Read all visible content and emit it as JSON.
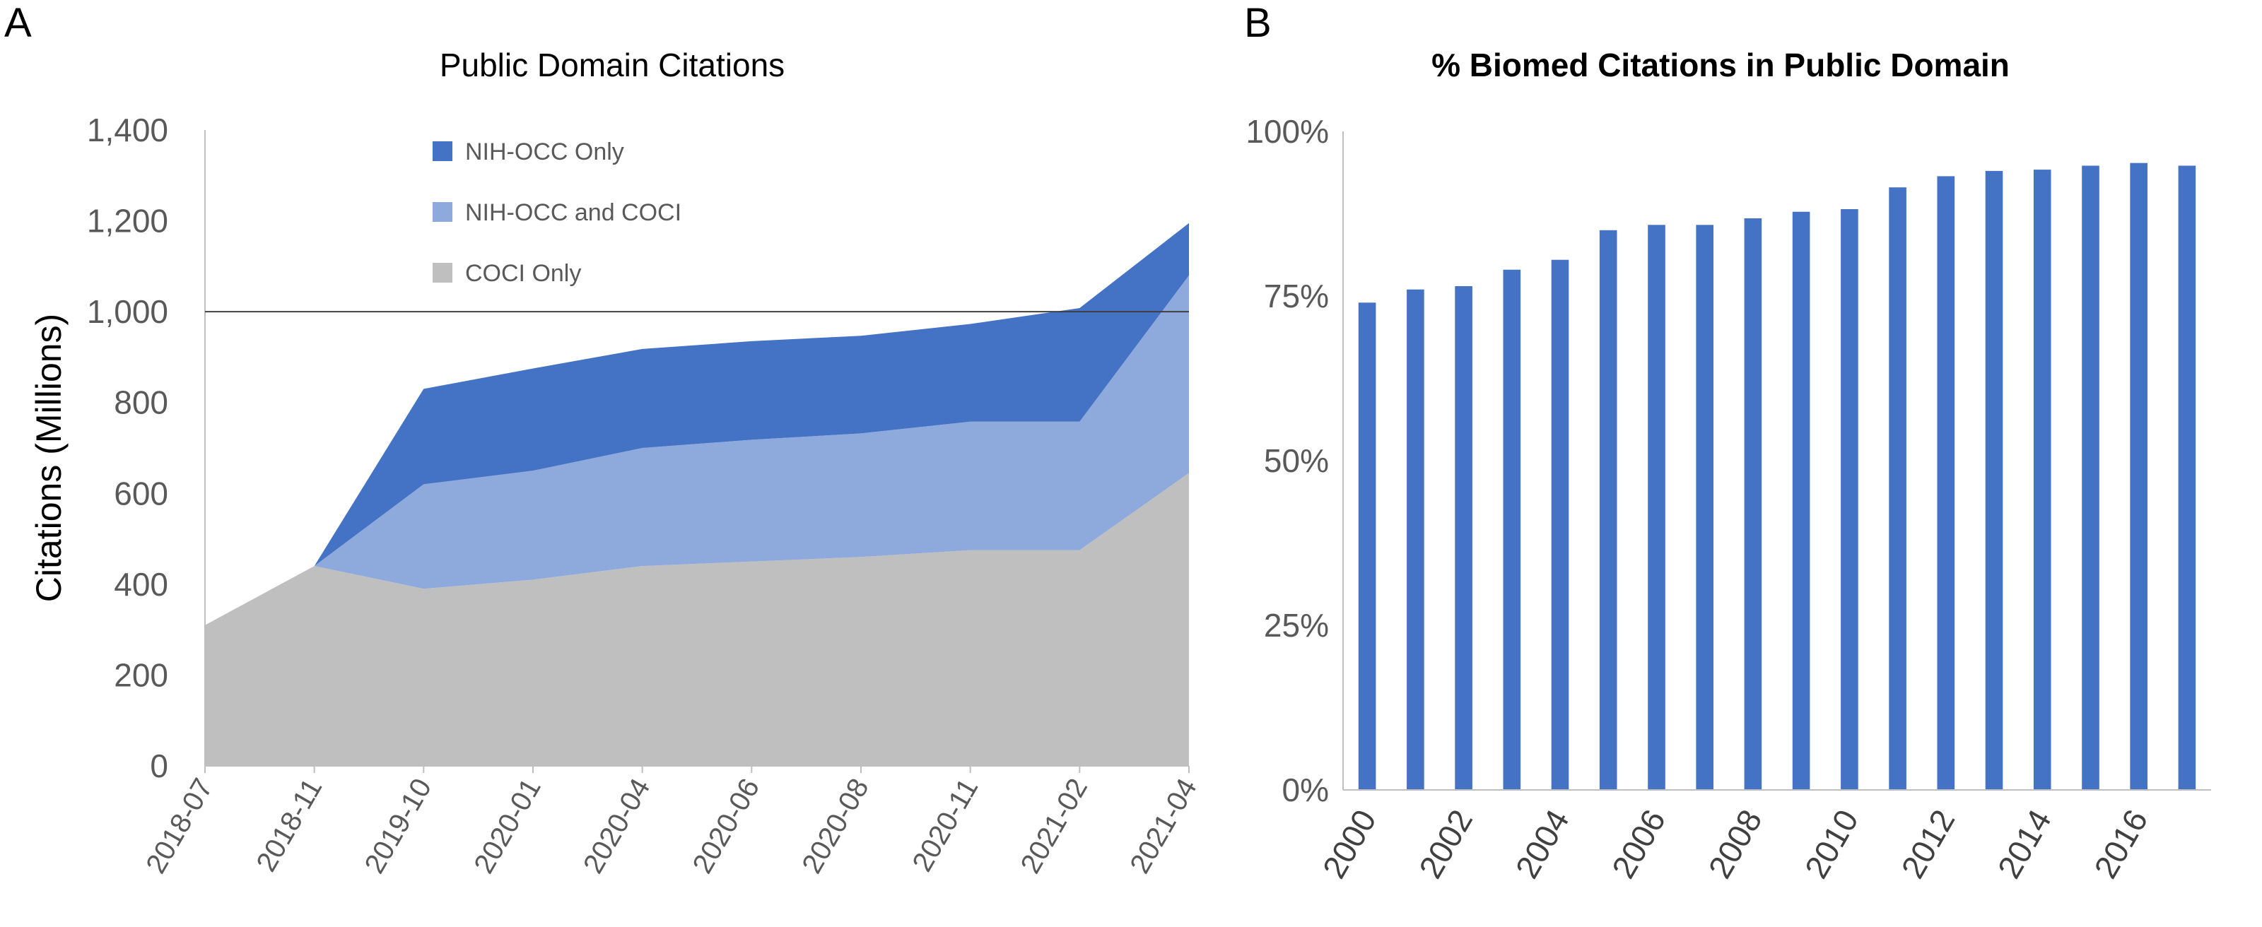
{
  "panel_labels": {
    "a": "A",
    "b": "B"
  },
  "colors": {
    "nih_occ_only": "#4472C4",
    "nih_occ_and_coci": "#8EA9DB",
    "coci_only": "#BFBFBF",
    "bar": "#4472C4",
    "axis_text": "#595959",
    "title_text": "#595959",
    "axis_line": "#bfbfbf"
  },
  "chart_data": [
    {
      "type": "area",
      "title": "Public Domain Citations",
      "xlabel": "",
      "ylabel": "Citations (Millions)",
      "ylim": [
        0,
        1400
      ],
      "yticks": [
        0,
        200,
        400,
        600,
        800,
        1000,
        1200,
        1400
      ],
      "ytick_labels": [
        "0",
        "200",
        "400",
        "600",
        "800",
        "1,000",
        "1,200",
        "1,400"
      ],
      "categories": [
        "2018-07",
        "2018-11",
        "2019-10",
        "2020-01",
        "2020-04",
        "2020-06",
        "2020-08",
        "2020-11",
        "2021-02",
        "2021-04"
      ],
      "stacked": true,
      "reference_line": 1000,
      "legend_position": "top-center",
      "series": [
        {
          "name": "COCI Only",
          "color_key": "coci_only",
          "values": [
            310,
            440,
            390,
            410,
            440,
            450,
            460,
            475,
            475,
            645
          ]
        },
        {
          "name": "NIH-OCC and COCI",
          "color_key": "nih_occ_and_coci",
          "values": [
            0,
            0,
            230,
            240,
            260,
            268,
            272,
            283,
            283,
            435
          ]
        },
        {
          "name": "NIH-OCC Only",
          "color_key": "nih_occ_only",
          "values": [
            0,
            0,
            210,
            225,
            218,
            217,
            215,
            215,
            250,
            115
          ]
        }
      ],
      "legend_order": [
        "NIH-OCC Only",
        "NIH-OCC and COCI",
        "COCI Only"
      ]
    },
    {
      "type": "bar",
      "title": "% Biomed Citations in Public Domain",
      "xlabel": "",
      "ylabel": "",
      "ylim": [
        0,
        1
      ],
      "yticks": [
        0,
        0.25,
        0.5,
        0.75,
        1.0
      ],
      "ytick_labels": [
        "0%",
        "25%",
        "50%",
        "75%",
        "100%"
      ],
      "categories": [
        "2000",
        "2001",
        "2002",
        "2003",
        "2004",
        "2005",
        "2006",
        "2007",
        "2008",
        "2009",
        "2010",
        "2011",
        "2012",
        "2013",
        "2014",
        "2015",
        "2016",
        "2017"
      ],
      "xtick_labels": [
        "2000",
        "",
        "2002",
        "",
        "2004",
        "",
        "2006",
        "",
        "2008",
        "",
        "2010",
        "",
        "2012",
        "",
        "2014",
        "",
        "2016",
        ""
      ],
      "values": [
        0.74,
        0.76,
        0.765,
        0.79,
        0.805,
        0.85,
        0.858,
        0.858,
        0.868,
        0.878,
        0.882,
        0.915,
        0.932,
        0.94,
        0.942,
        0.948,
        0.952,
        0.948
      ]
    }
  ]
}
